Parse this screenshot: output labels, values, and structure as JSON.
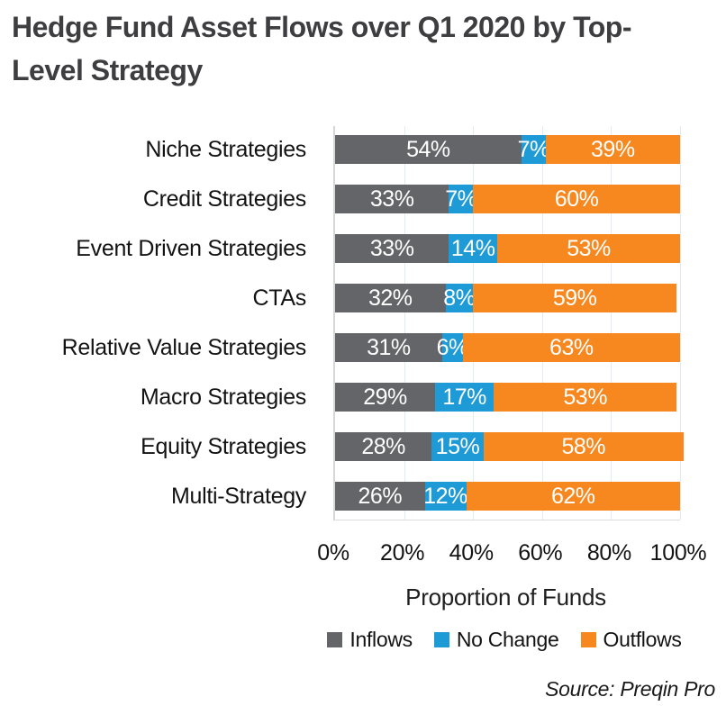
{
  "title": "Hedge Fund Asset Flows over Q1 2020 by Top-Level Strategy",
  "source": "Source: Preqin Pro",
  "chart_data": {
    "type": "bar",
    "stacked": true,
    "orientation": "horizontal",
    "title": "Hedge Fund Asset Flows over Q1 2020 by Top-Level Strategy",
    "xlabel": "Proportion of Funds",
    "x_ticks": [
      "0%",
      "20%",
      "40%",
      "60%",
      "80%",
      "100%"
    ],
    "xlim": [
      0,
      100
    ],
    "grid": "vertical light gridlines every 20%",
    "legend_position": "bottom",
    "value_suffix": "%",
    "categories": [
      "Niche Strategies",
      "Credit Strategies",
      "Event Driven Strategies",
      "CTAs",
      "Relative Value Strategies",
      "Macro Strategies",
      "Equity Strategies",
      "Multi-Strategy"
    ],
    "series": [
      {
        "name": "Inflows",
        "color": "#646569",
        "values": [
          54,
          33,
          33,
          32,
          31,
          29,
          28,
          26
        ]
      },
      {
        "name": "No Change",
        "color": "#1e9bd7",
        "values": [
          7,
          7,
          14,
          8,
          6,
          17,
          15,
          12
        ]
      },
      {
        "name": "Outflows",
        "color": "#f6881f",
        "values": [
          39,
          60,
          53,
          59,
          63,
          53,
          58,
          62
        ]
      }
    ]
  },
  "colors": {
    "title_text": "#3e3e40",
    "label_text": "#131313",
    "bar_label_text": "#ffffff",
    "axis_line": "#d6d6d6",
    "gridline": "#e3ebf2",
    "background": "#ffffff"
  }
}
